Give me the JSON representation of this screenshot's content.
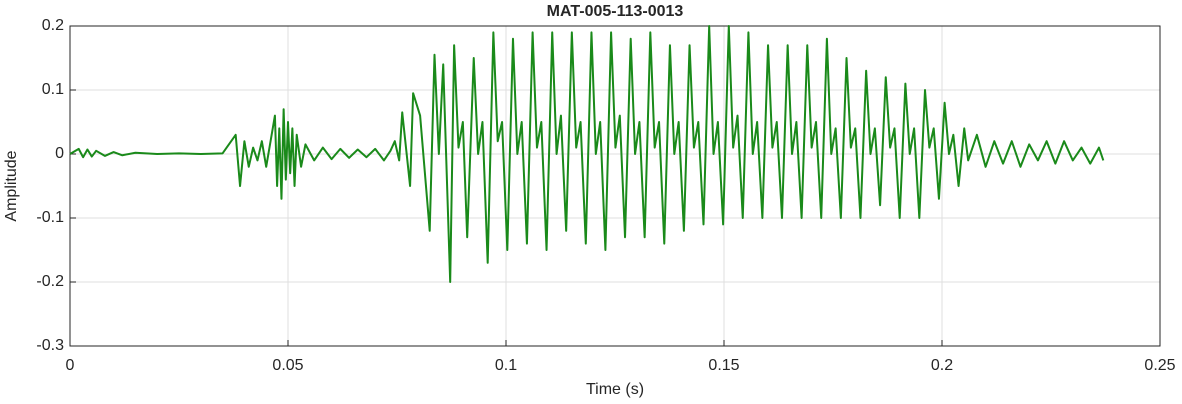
{
  "chart_data": {
    "type": "line",
    "title": "MAT-005-113-0013",
    "x_label": "Time (s)",
    "y_label": "Amplitude",
    "color": "#1a8a1a",
    "grid": true,
    "xlim": [
      0,
      0.25
    ],
    "xticks": [
      0,
      0.05,
      0.1,
      0.15,
      0.2,
      0.25
    ],
    "ylim": [
      -0.3,
      0.2
    ],
    "yticks": [
      -0.3,
      -0.2,
      -0.1,
      0,
      0.1,
      0.2
    ],
    "x": [
      0,
      0.002,
      0.003,
      0.004,
      0.005,
      0.006,
      0.008,
      0.01,
      0.012,
      0.015,
      0.02,
      0.025,
      0.03,
      0.035,
      0.038,
      0.0385,
      0.039,
      0.04,
      0.041,
      0.042,
      0.043,
      0.044,
      0.045,
      0.047,
      0.0475,
      0.048,
      0.0485,
      0.049,
      0.0495,
      0.05,
      0.0505,
      0.051,
      0.0515,
      0.052,
      0.053,
      0.054,
      0.056,
      0.058,
      0.06,
      0.062,
      0.064,
      0.066,
      0.068,
      0.07,
      0.072,
      0.0735,
      0.0745,
      0.0755,
      0.0762,
      0.078,
      0.0787,
      0.0803,
      0.0825,
      0.0836,
      0.0846,
      0.0856,
      0.0872,
      0.0881,
      0.0891,
      0.0901,
      0.0911,
      0.0926,
      0.0936,
      0.0946,
      0.0958,
      0.0971,
      0.0981,
      0.0991,
      0.1003,
      0.1016,
      0.1026,
      0.1036,
      0.1048,
      0.1061,
      0.1071,
      0.1081,
      0.1093,
      0.1106,
      0.1116,
      0.1126,
      0.1138,
      0.1151,
      0.1161,
      0.1171,
      0.1183,
      0.1196,
      0.1206,
      0.1216,
      0.1228,
      0.1241,
      0.1251,
      0.1261,
      0.1273,
      0.1286,
      0.1296,
      0.1306,
      0.1318,
      0.1331,
      0.1341,
      0.1351,
      0.1363,
      0.1376,
      0.1386,
      0.1396,
      0.1408,
      0.1421,
      0.1431,
      0.1441,
      0.1453,
      0.1466,
      0.1476,
      0.1486,
      0.1498,
      0.1511,
      0.1521,
      0.1531,
      0.1543,
      0.1556,
      0.1566,
      0.1576,
      0.1588,
      0.1601,
      0.1611,
      0.1621,
      0.1633,
      0.1646,
      0.1656,
      0.1666,
      0.1678,
      0.1691,
      0.1701,
      0.1711,
      0.1723,
      0.1736,
      0.1746,
      0.1756,
      0.1768,
      0.1781,
      0.1791,
      0.1801,
      0.1813,
      0.1826,
      0.1836,
      0.1846,
      0.1858,
      0.1871,
      0.1881,
      0.1891,
      0.1903,
      0.1916,
      0.1926,
      0.1936,
      0.1948,
      0.1961,
      0.1971,
      0.1981,
      0.1993,
      0.2006,
      0.2016,
      0.2026,
      0.2038,
      0.2051,
      0.206,
      0.208,
      0.21,
      0.212,
      0.214,
      0.216,
      0.218,
      0.22,
      0.222,
      0.224,
      0.226,
      0.228,
      0.23,
      0.232,
      0.234,
      0.236,
      0.237
    ],
    "values": [
      0,
      0.008,
      -0.005,
      0.007,
      -0.004,
      0.005,
      -0.003,
      0.003,
      -0.002,
      0.002,
      0,
      0.001,
      0,
      0.001,
      0.03,
      -0.01,
      -0.05,
      0.02,
      -0.02,
      0.01,
      -0.01,
      0.02,
      -0.02,
      0.06,
      -0.05,
      0.04,
      -0.07,
      0.07,
      -0.04,
      0.05,
      -0.03,
      0.04,
      -0.05,
      0.03,
      -0.02,
      0.015,
      -0.01,
      0.01,
      -0.008,
      0.008,
      -0.006,
      0.007,
      -0.005,
      0.008,
      -0.01,
      0.005,
      0.02,
      -0.01,
      0.065,
      -0.05,
      0.095,
      0.06,
      -0.12,
      0.155,
      0,
      0.14,
      -0.2,
      0.17,
      0.01,
      0.05,
      -0.13,
      0.15,
      0,
      0.05,
      -0.17,
      0.19,
      0.02,
      0.05,
      -0.15,
      0.18,
      0,
      0.05,
      -0.14,
      0.19,
      0.01,
      0.05,
      -0.15,
      0.19,
      0,
      0.06,
      -0.12,
      0.19,
      0.01,
      0.05,
      -0.14,
      0.19,
      0,
      0.05,
      -0.15,
      0.19,
      0.01,
      0.06,
      -0.13,
      0.18,
      0,
      0.05,
      -0.13,
      0.19,
      0.01,
      0.05,
      -0.14,
      0.17,
      0,
      0.05,
      -0.12,
      0.17,
      0.01,
      0.05,
      -0.11,
      0.2,
      0,
      0.05,
      -0.11,
      0.2,
      0.01,
      0.06,
      -0.1,
      0.19,
      0,
      0.05,
      -0.1,
      0.17,
      0.01,
      0.05,
      -0.1,
      0.17,
      0,
      0.05,
      -0.1,
      0.17,
      0.01,
      0.05,
      -0.1,
      0.18,
      0,
      0.04,
      -0.1,
      0.15,
      0.01,
      0.04,
      -0.1,
      0.13,
      0,
      0.04,
      -0.08,
      0.12,
      0.01,
      0.04,
      -0.1,
      0.11,
      0,
      0.04,
      -0.1,
      0.1,
      0.01,
      0.04,
      -0.07,
      0.08,
      0,
      0.03,
      -0.05,
      0.04,
      -0.01,
      0.03,
      -0.02,
      0.02,
      -0.015,
      0.02,
      -0.02,
      0.015,
      -0.01,
      0.02,
      -0.015,
      0.02,
      -0.01,
      0.01,
      -0.015,
      0.01,
      -0.01
    ]
  }
}
